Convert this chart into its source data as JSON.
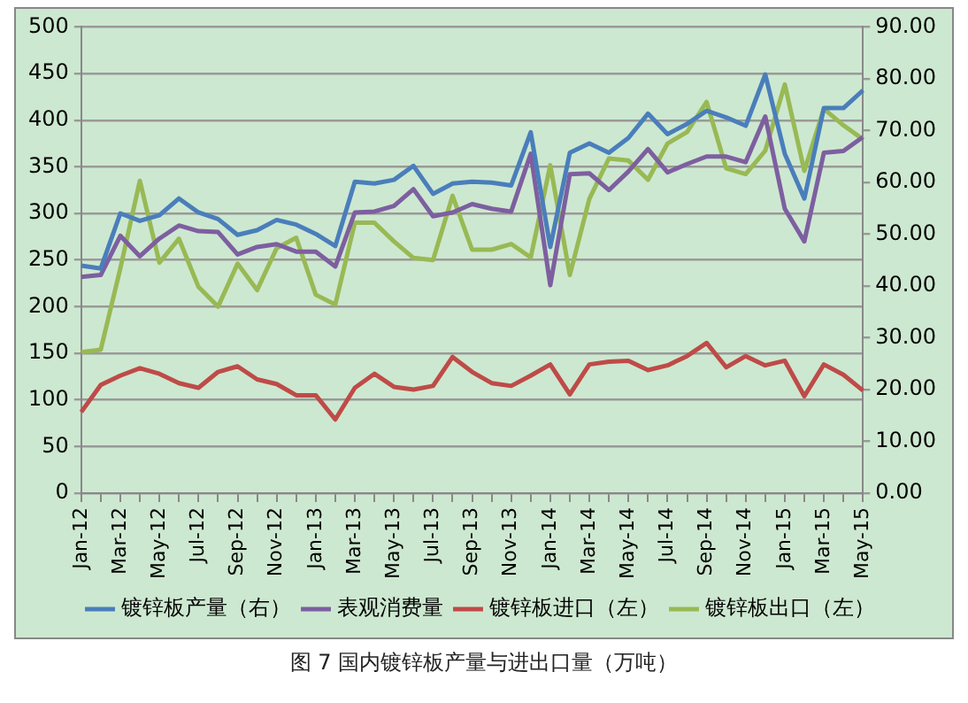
{
  "chart_data": {
    "type": "line",
    "title": "图 7 国内镀锌板产量与进出口量（万吨）",
    "categories": [
      "Jan-12",
      null,
      "Mar-12",
      null,
      "May-12",
      null,
      "Jul-12",
      null,
      "Sep-12",
      null,
      "Nov-12",
      null,
      "Jan-13",
      null,
      "Mar-13",
      null,
      "May-13",
      null,
      "Jul-13",
      null,
      "Sep-13",
      null,
      "Nov-13",
      null,
      "Jan-14",
      null,
      "Mar-14",
      null,
      "May-14",
      null,
      "Jul-14",
      null,
      "Sep-14",
      null,
      "Nov-14",
      null,
      "Jan-15",
      null,
      "Mar-15",
      null,
      "May-15"
    ],
    "series": [
      {
        "name": "镀锌板产量（右）",
        "color": "#4a7ebb",
        "values": [
          244,
          241,
          300,
          292,
          298,
          316,
          301,
          294,
          277,
          282,
          293,
          288,
          278,
          265,
          334,
          332,
          336,
          351,
          321,
          332,
          334,
          333,
          330,
          387,
          264,
          365,
          375,
          365,
          381,
          407,
          385,
          396,
          410,
          403,
          394,
          449,
          364,
          316,
          413,
          413,
          432
        ]
      },
      {
        "name": "表观消费量",
        "color": "#7d5fa0",
        "values": [
          232,
          234,
          276,
          254,
          273,
          287,
          281,
          280,
          256,
          264,
          267,
          259,
          259,
          243,
          301,
          302,
          308,
          326,
          297,
          301,
          310,
          305,
          302,
          364,
          223,
          342,
          343,
          325,
          345,
          369,
          344,
          353,
          361,
          361,
          355,
          404,
          305,
          270,
          365,
          367,
          382
        ]
      },
      {
        "name": "镀锌板进口（左）",
        "color": "#be4b48",
        "values": [
          87,
          116,
          126,
          134,
          128,
          118,
          113,
          130,
          136,
          122,
          117,
          105,
          105,
          79,
          113,
          128,
          114,
          111,
          115,
          146,
          130,
          118,
          115,
          126,
          138,
          106,
          138,
          141,
          142,
          132,
          137,
          147,
          161,
          135,
          147,
          137,
          142,
          104,
          138,
          127,
          110
        ]
      },
      {
        "name": "镀锌板出口（左）",
        "color": "#98b954",
        "axis": "y2",
        "values": [
          27.2,
          27.7,
          43.4,
          60.3,
          44.5,
          49.1,
          39.8,
          36.0,
          44.3,
          39.2,
          47.3,
          49.3,
          38.3,
          36.4,
          52.2,
          52.2,
          48.6,
          45.4,
          45.0,
          57.4,
          47.0,
          47.0,
          48.1,
          45.5,
          63.3,
          42.1,
          56.8,
          64.6,
          64.2,
          60.5,
          67.5,
          69.7,
          75.5,
          62.7,
          61.6,
          66.1,
          78.9,
          62.2,
          74.2,
          71.0,
          68.3
        ]
      }
    ],
    "ylim": [
      0,
      500
    ],
    "yticks": [
      0,
      50,
      100,
      150,
      200,
      250,
      300,
      350,
      400,
      450,
      500
    ],
    "y2lim": [
      0,
      90
    ],
    "y2ticks": [
      {
        "value": 0,
        "label": "0.00"
      },
      {
        "value": 10,
        "label": "10.00"
      },
      {
        "value": 20,
        "label": "20.00"
      },
      {
        "value": 30,
        "label": "30.00"
      },
      {
        "value": 40,
        "label": "40.00"
      },
      {
        "value": 50,
        "label": "50.00"
      },
      {
        "value": 60,
        "label": "60.00"
      },
      {
        "value": 70,
        "label": "70.00"
      },
      {
        "value": 80,
        "label": "80.00"
      },
      {
        "value": 90,
        "label": "90.00"
      }
    ],
    "grid": "y",
    "legend": "bottom",
    "marker": "none",
    "line_style": "solid"
  }
}
